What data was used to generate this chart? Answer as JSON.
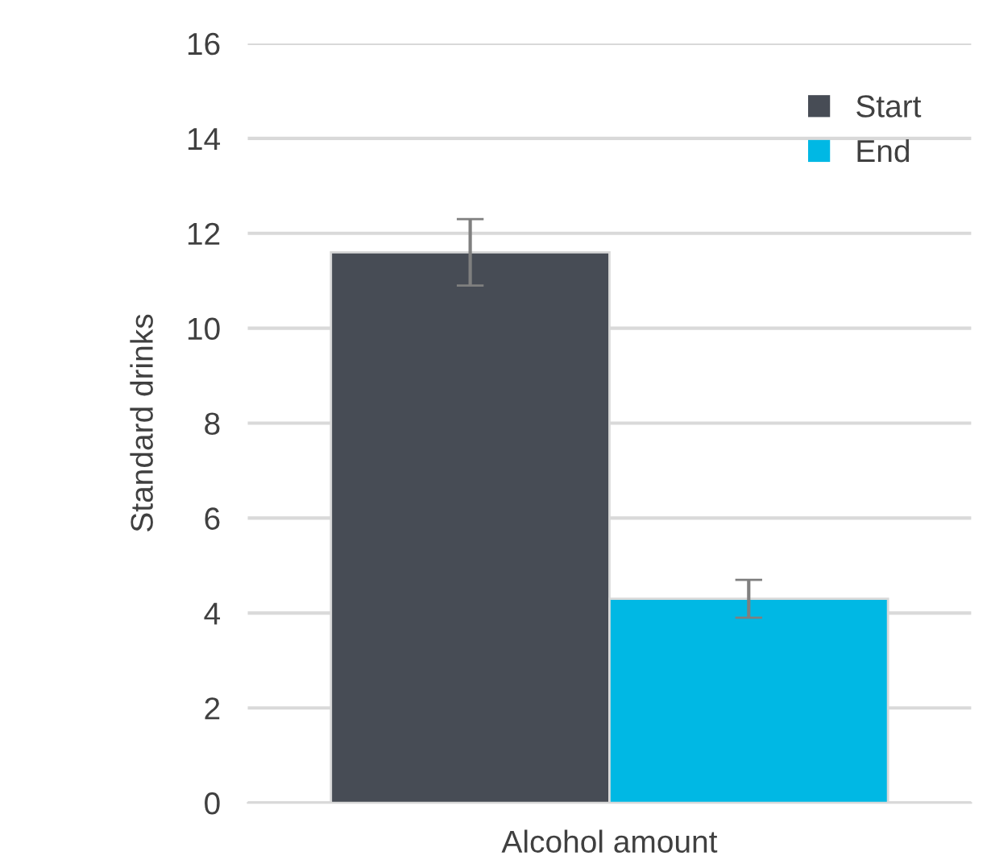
{
  "chart_data": {
    "type": "bar",
    "ylabel": "Standard drinks",
    "categories": [
      "Alcohol amount"
    ],
    "series": [
      {
        "name": "Start",
        "color": "#474c55",
        "values": [
          11.6
        ],
        "errors": [
          [
            10.9,
            12.3
          ]
        ]
      },
      {
        "name": "End",
        "color": "#00b8e4",
        "values": [
          4.3
        ],
        "errors": [
          [
            3.9,
            4.7
          ]
        ]
      }
    ],
    "ylim": [
      0,
      16
    ],
    "yticks": [
      0,
      2,
      4,
      6,
      8,
      10,
      12,
      14,
      16
    ],
    "grid": "y",
    "legend": "top right"
  }
}
